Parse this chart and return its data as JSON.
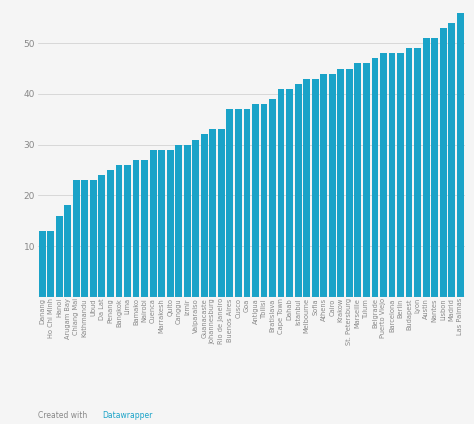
{
  "categories": [
    "Danang",
    "Ho Chi Minh",
    "Hanoi",
    "Arugam Bay",
    "Chiang Mai",
    "Kathmandu",
    "Ubud",
    "Da Lat",
    "Penang",
    "Bangkok",
    "Lima",
    "Bamako",
    "Nairobi",
    "Cuenca",
    "Marrakesh",
    "Quito",
    "Canggu",
    "Izmir",
    "Valparaiso",
    "Guanacaste",
    "Johannesburg",
    "Rio de Janeiro",
    "Buenos Aires",
    "Cusco",
    "Goa",
    "Antigua",
    "Tbilisi",
    "Bratislava",
    "Cape Town",
    "Dahab",
    "Istanbul",
    "Melbourne",
    "Sofia",
    "Athens",
    "Cairo",
    "Krakow",
    "St. Petersburg",
    "Marseille",
    "Tulum",
    "Belgrade",
    "Puerto Viejo",
    "Barcelona",
    "Berlin",
    "Budapest",
    "Lyon",
    "Austin",
    "Nantes",
    "Lisbon",
    "Madrid",
    "Las Palmas"
  ],
  "values": [
    13,
    13,
    16,
    18,
    23,
    23,
    23,
    24,
    25,
    26,
    26,
    27,
    27,
    29,
    29,
    29,
    30,
    30,
    31,
    32,
    33,
    33,
    37,
    37,
    37,
    38,
    38,
    39,
    41,
    41,
    42,
    43,
    43,
    44,
    44,
    45,
    45,
    46,
    46,
    47,
    48,
    48,
    48,
    49,
    49,
    51,
    51,
    53,
    54,
    56
  ],
  "bar_color": "#1aa3c8",
  "background_color": "#f5f5f5",
  "grid_color": "#cccccc",
  "tick_color": "#888888",
  "label_fontsize": 4.8,
  "tick_fontsize": 6.5,
  "credit_color_normal": "#888888",
  "credit_color_link": "#1aa3c8",
  "ylim": [
    0,
    56
  ],
  "yticks": [
    10,
    20,
    30,
    40,
    50
  ]
}
